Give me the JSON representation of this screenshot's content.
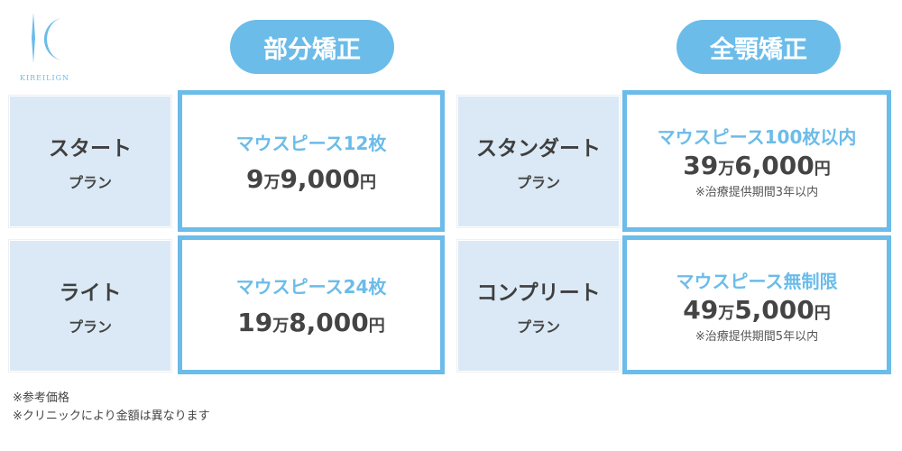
{
  "logo": {
    "text": "KIREILIGN",
    "color": "#6bbce9"
  },
  "headers": {
    "partial": "部分矯正",
    "full": "全顎矯正"
  },
  "plans": [
    {
      "name": "スタート",
      "suffix": "プラン",
      "pieces": "マウスピース12枚",
      "price_man": "9",
      "man": "万",
      "price_rest": "9,000",
      "yen": "円"
    },
    {
      "name": "ライト",
      "suffix": "プラン",
      "pieces": "マウスピース24枚",
      "price_man": "19",
      "man": "万",
      "price_rest": "8,000",
      "yen": "円"
    },
    {
      "name": "スタンダート",
      "suffix": "プラン",
      "pieces": "マウスピース100枚以内",
      "price_man": "39",
      "man": "万",
      "price_rest": "6,000",
      "yen": "円",
      "note": "※治療提供期間3年以内"
    },
    {
      "name": "コンプリート",
      "suffix": "プラン",
      "pieces": "マウスピース無制限",
      "price_man": "49",
      "man": "万",
      "price_rest": "5,000",
      "yen": "円",
      "note": "※治療提供期間5年以内"
    }
  ],
  "footnotes": [
    "※参考価格",
    "※クリニックにより金額は異なります"
  ],
  "colors": {
    "accent": "#6bbce9",
    "label_bg": "#dae9f5"
  }
}
